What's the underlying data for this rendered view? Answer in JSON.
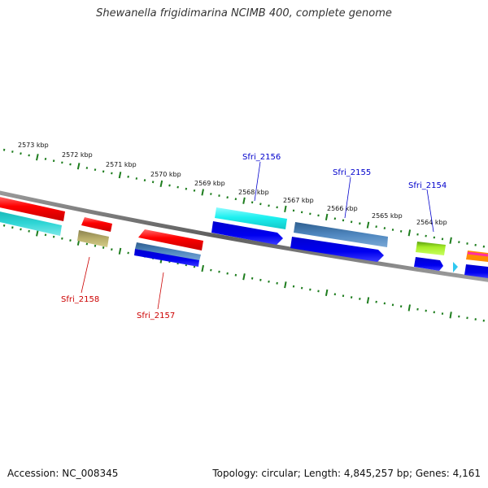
{
  "title": "Shewanella frigidimarina NCIMB 400, complete genome",
  "footer": {
    "accession": "Accession: NC_008345",
    "summary": "Topology: circular; Length: 4,845,257 bp; Genes: 4,161"
  },
  "ticks": [
    "2573 kbp",
    "2572 kbp",
    "2571 kbp",
    "2570 kbp",
    "2569 kbp",
    "2568 kbp",
    "2567 kbp",
    "2566 kbp",
    "2565 kbp",
    "2564 kbp"
  ],
  "gene_labels": {
    "sfri_2156": "Sfri_2156",
    "sfri_2155": "Sfri_2155",
    "sfri_2154": "Sfri_2154",
    "sfri_2158": "Sfri_2158",
    "sfri_2157": "Sfri_2157"
  },
  "colors": {
    "label_blue": "#0000cc",
    "label_red": "#cc0000",
    "tick_green": "#1e7d1e",
    "backbone": "#7a7a7a"
  }
}
